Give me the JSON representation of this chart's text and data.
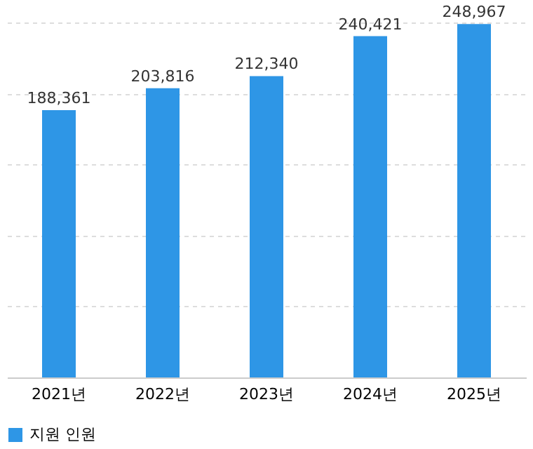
{
  "chart_data": {
    "type": "bar",
    "categories": [
      "2021년",
      "2022년",
      "2023년",
      "2024년",
      "2025년"
    ],
    "series": [
      {
        "name": "지원 인원",
        "color": "#2e96e6",
        "values": [
          188361,
          203816,
          212340,
          240421,
          248967
        ],
        "value_labels": [
          "188,361",
          "203,816",
          "212,340",
          "240,421",
          "248,967"
        ]
      }
    ],
    "grid": "y",
    "legend": "bottom",
    "tick_labels": "x"
  }
}
